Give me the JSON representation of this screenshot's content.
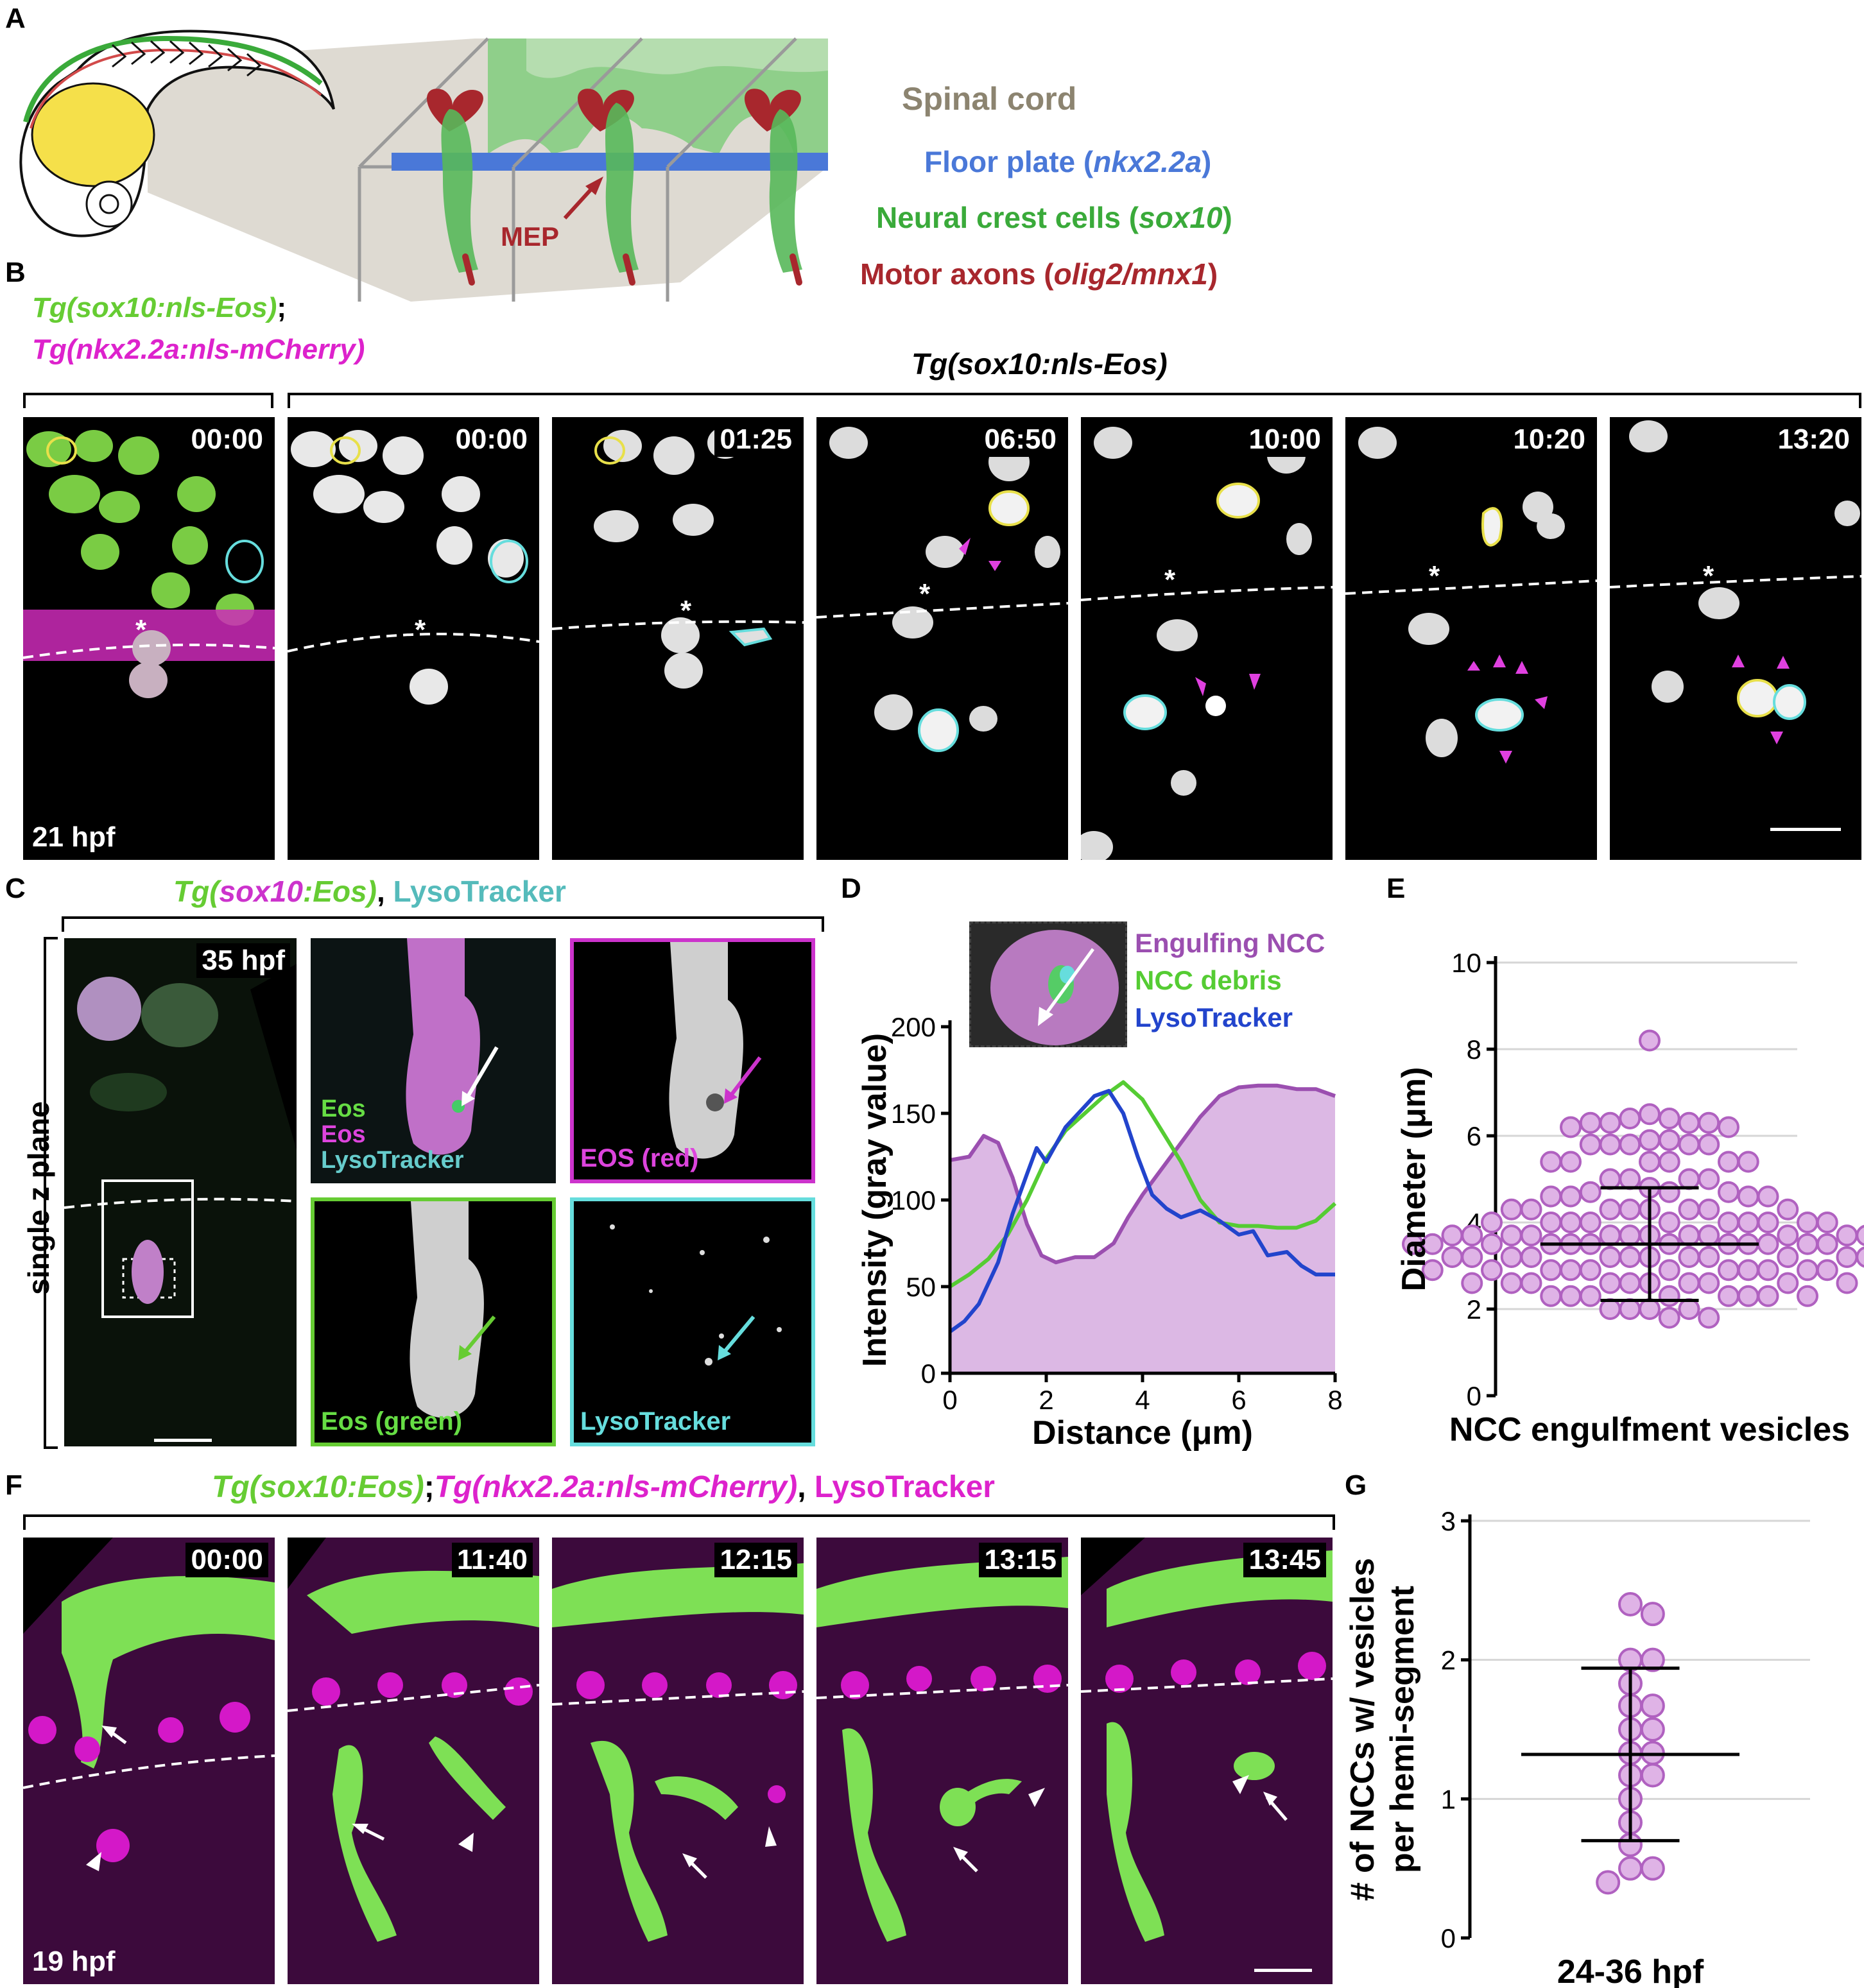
{
  "panel_labels": {
    "A": "A",
    "B": "B",
    "C": "C",
    "D": "D",
    "E": "E",
    "F": "F",
    "G": "G"
  },
  "panelA": {
    "legend": {
      "spinal_cord": "Spinal cord",
      "floor_plate": "Floor plate (",
      "floor_plate_gene": "nkx2.2a",
      "neural_crest": "Neural crest cells (",
      "neural_crest_gene": "sox10",
      "motor_axons": "Motor axons (",
      "motor_axons_gene": "olig2/mnx1",
      "close_paren": ")"
    },
    "mep_label": "MEP",
    "colors": {
      "spinal_cord": "#8c8470",
      "floor_plate": "#4a78d8",
      "neural_crest": "#3aaa3a",
      "motor_axons": "#a8272d",
      "yolk": "#f5e04a"
    }
  },
  "panelB": {
    "header_left_line1": "Tg(sox10:nls-Eos)",
    "header_left_sep": ";",
    "header_left_line2": "Tg(nkx2.2a:nls-mCherry)",
    "header_right": "Tg(sox10:nls-Eos)",
    "timestamps": [
      "00:00",
      "00:00",
      "01:25",
      "06:50",
      "10:00",
      "10:20",
      "13:20"
    ],
    "hpf": "21 hpf",
    "asterisk": "*"
  },
  "panelC": {
    "header_tg": "Tg(",
    "header_sox": "sox10",
    "header_eos": ":Eos)",
    "header_sep": ",",
    "header_lyso": "LysoTracker",
    "side_label": "single z plane",
    "hpf": "35 hpf",
    "merge_legend": [
      "Eos",
      "Eos",
      "LysoTracker"
    ],
    "label_red": "EOS (red)",
    "label_green": "Eos (green)",
    "label_lyso": "LysoTracker"
  },
  "panelD": {
    "legend": [
      "Engulfing NCC",
      "NCC debris",
      "LysoTracker"
    ],
    "ylabel": "Intensity (gray value)",
    "xlabel": "Distance (μm)",
    "yticks": [
      "0",
      "50",
      "100",
      "150",
      "200"
    ],
    "xticks": [
      "0",
      "2",
      "4",
      "6",
      "8"
    ]
  },
  "panelE": {
    "ylabel": "Diameter (μm)",
    "xlabel": "NCC engulfment vesicles",
    "yticks": [
      "0",
      "2",
      "4",
      "6",
      "8",
      "10"
    ]
  },
  "panelF": {
    "header_1": "Tg(sox10:Eos)",
    "header_sep1": ";",
    "header_2": "Tg(nkx2.2a:nls-mCherry)",
    "header_sep2": ",",
    "header_3": "LysoTracker",
    "timestamps": [
      "00:00",
      "11:40",
      "12:15",
      "13:15",
      "13:45"
    ],
    "hpf": "19 hpf"
  },
  "panelG": {
    "ylabel_line1": "# of NCCs w/ vesicles",
    "ylabel_line2": "per hemi-segment",
    "xlabel": "24-36 hpf",
    "yticks": [
      "0",
      "1",
      "2",
      "3"
    ]
  },
  "chart_data": [
    {
      "type": "area",
      "panel": "D",
      "xlabel": "Distance (μm)",
      "ylabel": "Intensity (gray value)",
      "xlim": [
        0,
        8
      ],
      "ylim": [
        0,
        200
      ],
      "series": [
        {
          "name": "Engulfing NCC",
          "color": "#9b4fb0",
          "fill": "#dcb8e4",
          "x": [
            0,
            0.4,
            0.7,
            1,
            1.3,
            1.6,
            1.9,
            2.2,
            2.6,
            3,
            3.4,
            3.7,
            4,
            4.4,
            4.8,
            5.2,
            5.6,
            6,
            6.4,
            6.8,
            7.2,
            7.6,
            8
          ],
          "values": [
            123,
            125,
            137,
            133,
            113,
            86,
            68,
            64,
            67,
            67,
            75,
            90,
            103,
            118,
            133,
            148,
            160,
            165,
            166,
            166,
            164,
            164,
            160
          ]
        },
        {
          "name": "NCC debris",
          "color": "#55cc33",
          "x": [
            0,
            0.4,
            0.8,
            1.2,
            1.6,
            2,
            2.4,
            2.8,
            3.2,
            3.6,
            4,
            4.4,
            4.8,
            5.2,
            5.6,
            6,
            6.4,
            6.8,
            7.2,
            7.6,
            8
          ],
          "values": [
            50,
            57,
            66,
            80,
            100,
            124,
            140,
            150,
            160,
            168,
            158,
            140,
            122,
            100,
            87,
            85,
            85,
            84,
            84,
            88,
            98
          ]
        },
        {
          "name": "LysoTracker",
          "color": "#2244cc",
          "x": [
            0,
            0.3,
            0.6,
            1,
            1.3,
            1.6,
            1.8,
            2,
            2.2,
            2.4,
            2.7,
            3,
            3.3,
            3.6,
            3.9,
            4.2,
            4.5,
            4.8,
            5.2,
            5.6,
            6,
            6.3,
            6.6,
            7,
            7.3,
            7.6,
            8
          ],
          "values": [
            24,
            30,
            40,
            64,
            92,
            115,
            130,
            122,
            132,
            142,
            151,
            160,
            163,
            150,
            125,
            103,
            95,
            90,
            94,
            88,
            80,
            82,
            68,
            70,
            62,
            57,
            57
          ]
        }
      ]
    },
    {
      "type": "scatter",
      "panel": "E",
      "xlabel": "NCC engulfment vesicles",
      "ylabel": "Diameter (μm)",
      "ylim": [
        0,
        10
      ],
      "mean": 3.5,
      "sd_upper": 4.8,
      "sd_lower": 2.2,
      "values": [
        8.2,
        6.5,
        6.4,
        6.4,
        6.3,
        6.3,
        6.3,
        6.3,
        6.2,
        6.2,
        5.9,
        5.9,
        5.8,
        5.8,
        5.8,
        5.8,
        5.8,
        5.4,
        5.4,
        5.4,
        5.4,
        5.4,
        5.4,
        5.0,
        5.0,
        5.0,
        5.0,
        4.8,
        4.7,
        4.7,
        4.7,
        4.6,
        4.6,
        4.6,
        4.6,
        4.3,
        4.3,
        4.3,
        4.3,
        4.3,
        4.3,
        4.3,
        4.3,
        4.0,
        4.0,
        4.0,
        4.0,
        4.0,
        4.0,
        4.0,
        4.0,
        4.0,
        4.0,
        3.7,
        3.7,
        3.7,
        3.7,
        3.7,
        3.7,
        3.7,
        3.7,
        3.7,
        3.7,
        3.7,
        3.7,
        3.5,
        3.5,
        3.5,
        3.5,
        3.5,
        3.5,
        3.5,
        3.5,
        3.5,
        3.5,
        3.5,
        3.5,
        3.5,
        3.2,
        3.2,
        3.2,
        3.2,
        3.2,
        3.2,
        3.2,
        3.2,
        3.2,
        3.2,
        3.2,
        3.2,
        2.9,
        2.9,
        2.9,
        2.9,
        2.9,
        2.9,
        2.9,
        2.9,
        2.9,
        2.9,
        2.9,
        2.9,
        2.6,
        2.6,
        2.6,
        2.6,
        2.6,
        2.6,
        2.6,
        2.6,
        2.6,
        2.6,
        2.3,
        2.3,
        2.3,
        2.3,
        2.3,
        2.3,
        2.3,
        2.3,
        2.0,
        2.0,
        2.0,
        2.0,
        1.8,
        1.8
      ]
    },
    {
      "type": "scatter",
      "panel": "G",
      "xlabel": "24-36 hpf",
      "ylabel": "# of NCCs w/ vesicles per hemi-segment",
      "ylim": [
        0,
        3
      ],
      "mean": 1.32,
      "sd_upper": 1.94,
      "sd_lower": 0.7,
      "values": [
        2.4,
        2.33,
        2.0,
        2.0,
        1.83,
        1.67,
        1.67,
        1.5,
        1.5,
        1.33,
        1.33,
        1.17,
        1.17,
        1.0,
        0.83,
        0.67,
        0.5,
        0.5,
        0.4
      ]
    }
  ]
}
